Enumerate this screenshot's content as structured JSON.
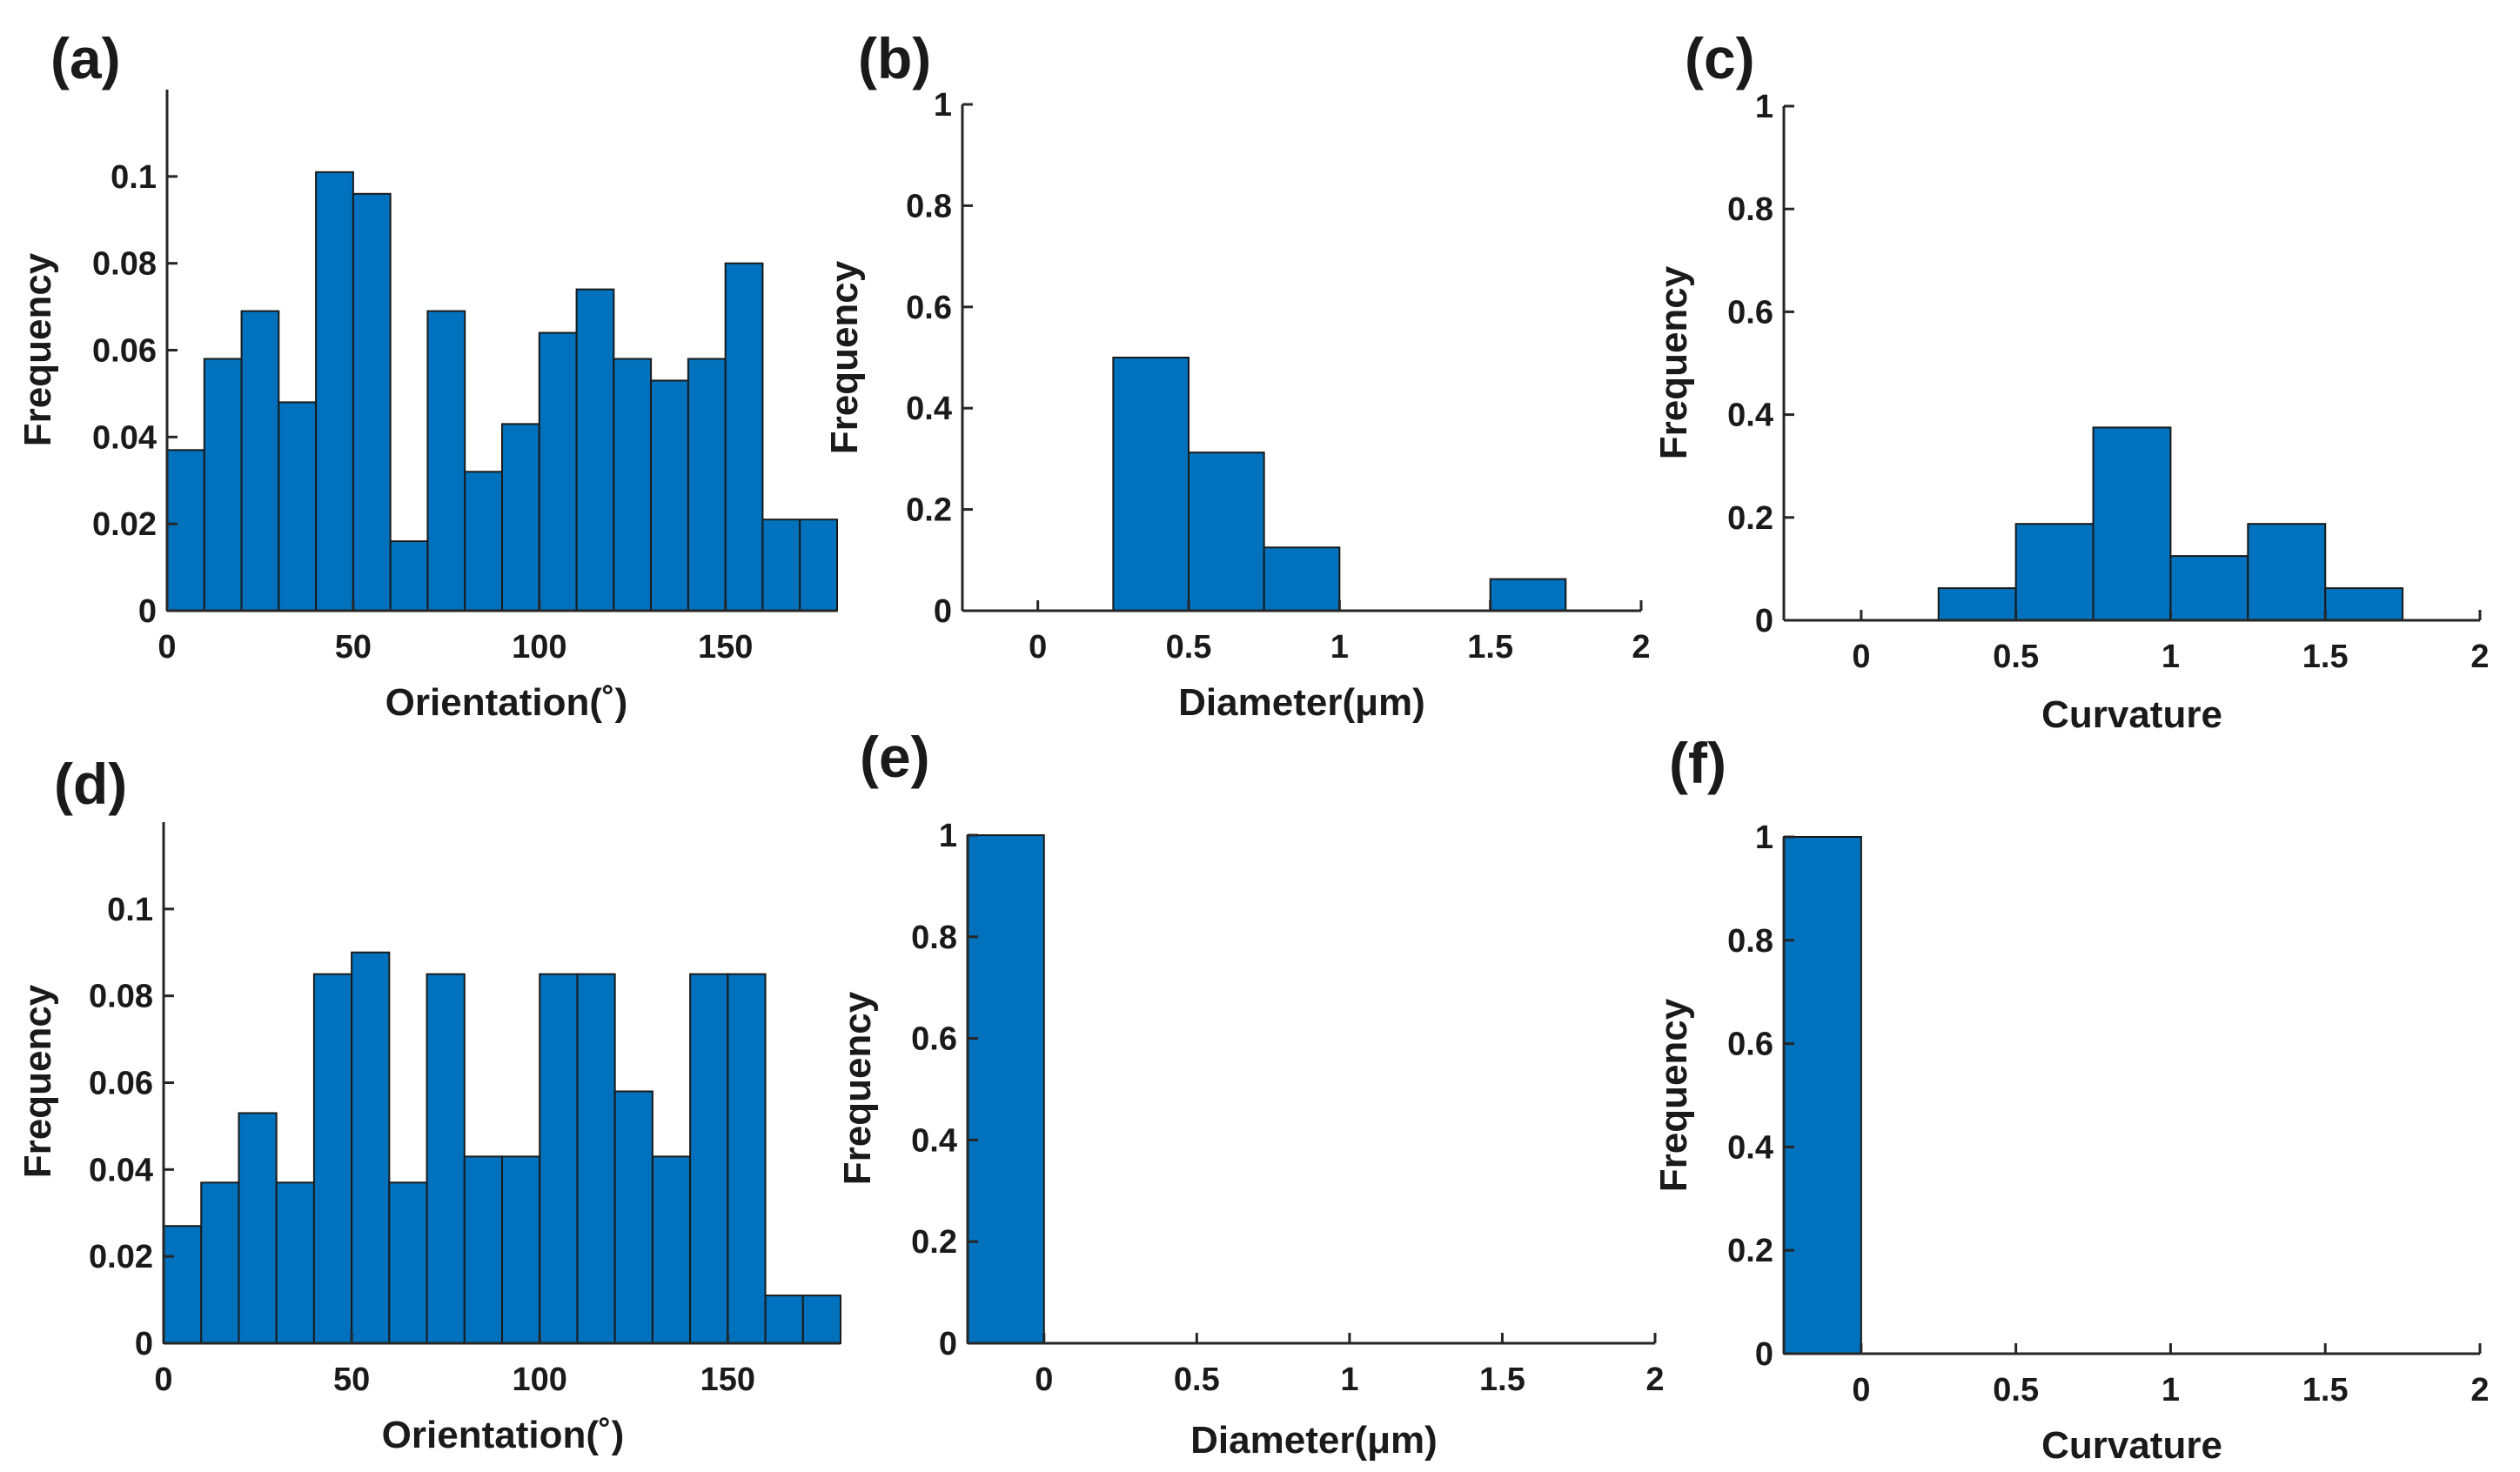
{
  "chart_data": [
    {
      "panel": "(a)",
      "type": "histogram",
      "xlabel": "Orientation(˚)",
      "ylabel": "Frequency",
      "xlim": [
        0,
        180
      ],
      "ylim": [
        0,
        0.12
      ],
      "xticks": [
        "0",
        "50",
        "100",
        "150"
      ],
      "yticks": [
        "0",
        "0.02",
        "0.04",
        "0.06",
        "0.08",
        "0.1"
      ],
      "bin_edges": [
        0,
        10,
        20,
        30,
        40,
        50,
        60,
        70,
        80,
        90,
        100,
        110,
        120,
        130,
        140,
        150,
        160,
        170,
        180
      ],
      "values": [
        0.037,
        0.058,
        0.069,
        0.048,
        0.101,
        0.096,
        0.016,
        0.069,
        0.032,
        0.043,
        0.064,
        0.074,
        0.058,
        0.053,
        0.058,
        0.08,
        0.021,
        0.021
      ]
    },
    {
      "panel": "(b)",
      "type": "histogram",
      "xlabel": "Diameter(μm)",
      "ylabel": "Frequency",
      "xlim": [
        -0.25,
        2
      ],
      "ylim": [
        0,
        1
      ],
      "xticks": [
        "0",
        "0.5",
        "1",
        "1.5",
        "2"
      ],
      "yticks": [
        "0",
        "0.2",
        "0.4",
        "0.6",
        "0.8",
        "1"
      ],
      "bin_edges": [
        0.25,
        0.5,
        0.75,
        1.0,
        1.25,
        1.5,
        1.75
      ],
      "values": [
        0.5,
        0.3125,
        0.125,
        0,
        0,
        0.0625
      ]
    },
    {
      "panel": "(c)",
      "type": "histogram",
      "xlabel": "Curvature",
      "ylabel": "Frequency",
      "xlim": [
        -0.25,
        2
      ],
      "ylim": [
        0,
        1
      ],
      "xticks": [
        "0",
        "0.5",
        "1",
        "1.5",
        "2"
      ],
      "yticks": [
        "0",
        "0.2",
        "0.4",
        "0.6",
        "0.8",
        "1"
      ],
      "bin_edges": [
        0.25,
        0.5,
        0.75,
        1.0,
        1.25,
        1.5,
        1.75
      ],
      "values": [
        0.0625,
        0.1875,
        0.375,
        0.125,
        0.1875,
        0.0625
      ]
    },
    {
      "panel": "(d)",
      "type": "histogram",
      "xlabel": "Orientation(˚)",
      "ylabel": "Frequency",
      "xlim": [
        0,
        180
      ],
      "ylim": [
        0,
        0.12
      ],
      "xticks": [
        "0",
        "50",
        "100",
        "150"
      ],
      "yticks": [
        "0",
        "0.02",
        "0.04",
        "0.06",
        "0.08",
        "0.1"
      ],
      "bin_edges": [
        0,
        10,
        20,
        30,
        40,
        50,
        60,
        70,
        80,
        90,
        100,
        110,
        120,
        130,
        140,
        150,
        160,
        170,
        180
      ],
      "values": [
        0.027,
        0.037,
        0.053,
        0.037,
        0.085,
        0.09,
        0.037,
        0.085,
        0.043,
        0.043,
        0.085,
        0.085,
        0.058,
        0.043,
        0.085,
        0.085,
        0.011,
        0.011
      ]
    },
    {
      "panel": "(e)",
      "type": "histogram",
      "xlabel": "Diameter(μm)",
      "ylabel": "Frequency",
      "xlim": [
        -0.25,
        2
      ],
      "ylim": [
        0,
        1
      ],
      "xticks": [
        "0",
        "0.5",
        "1",
        "1.5",
        "2"
      ],
      "yticks": [
        "0",
        "0.2",
        "0.4",
        "0.6",
        "0.8",
        "1"
      ],
      "bin_edges": [
        -0.25,
        0
      ],
      "values": [
        1.0
      ]
    },
    {
      "panel": "(f)",
      "type": "histogram",
      "xlabel": "Curvature",
      "ylabel": "Frequency",
      "xlim": [
        -0.25,
        2
      ],
      "ylim": [
        0,
        1
      ],
      "xticks": [
        "0",
        "0.5",
        "1",
        "1.5",
        "2"
      ],
      "yticks": [
        "0",
        "0.2",
        "0.4",
        "0.6",
        "0.8",
        "1"
      ],
      "bin_edges": [
        -0.25,
        0
      ],
      "values": [
        1.0
      ]
    }
  ],
  "style": {
    "bar_color": "#0072BD",
    "bar_edge_color": "#1a1a1a",
    "axis_color": "#262626"
  }
}
